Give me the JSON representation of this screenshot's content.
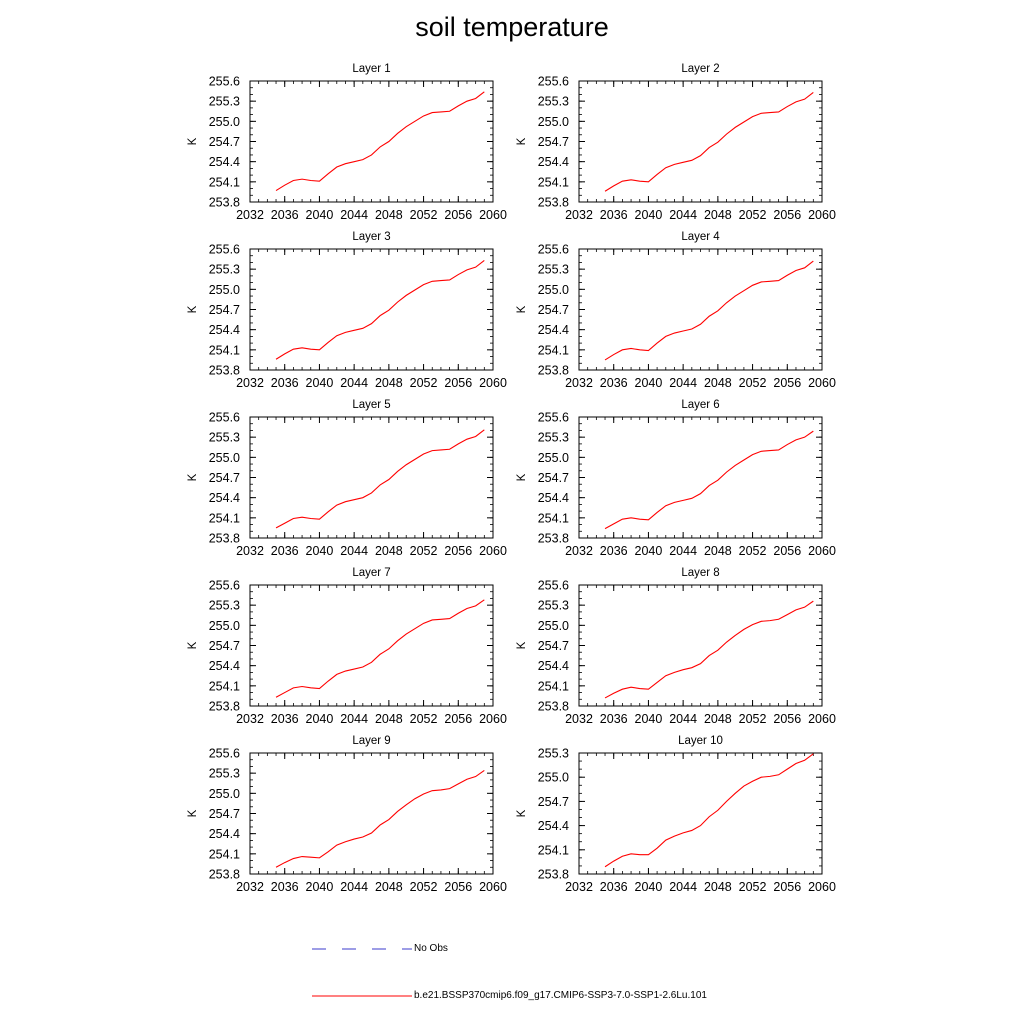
{
  "figure": {
    "title": "soil temperature"
  },
  "legend": {
    "items": [
      {
        "label": "No Obs",
        "color": "#3b3bcc",
        "style": "dashed"
      },
      {
        "label": "b.e21.BSSP370cmip6.f09_g17.CMIP6-SSP3-7.0-SSP1-2.6Lu.101",
        "color": "#ff0000",
        "style": "solid"
      }
    ]
  },
  "chart_data": [
    {
      "type": "line",
      "title": "Layer 1",
      "ylabel": "K",
      "xlim": [
        2032,
        2060
      ],
      "ylim": [
        253.8,
        255.6
      ],
      "xticks": [
        2032,
        2036,
        2040,
        2044,
        2048,
        2052,
        2056,
        2060
      ],
      "yticks": [
        "253.8",
        "254.1",
        "254.4",
        "254.7",
        "255.0",
        "255.3",
        "255.6"
      ],
      "series": [
        {
          "color": "#ff0000",
          "x": [
            2035,
            2036,
            2037,
            2038,
            2039,
            2040,
            2041,
            2042,
            2043,
            2044,
            2045,
            2046,
            2047,
            2048,
            2049,
            2050,
            2051,
            2052,
            2053,
            2054,
            2055,
            2056,
            2057,
            2058,
            2059
          ],
          "y": [
            253.97,
            254.05,
            254.12,
            254.14,
            254.12,
            254.11,
            254.22,
            254.32,
            254.37,
            254.4,
            254.43,
            254.5,
            254.62,
            254.7,
            254.82,
            254.92,
            255.0,
            255.08,
            255.13,
            255.14,
            255.15,
            255.23,
            255.3,
            255.34,
            255.44
          ]
        }
      ]
    },
    {
      "type": "line",
      "title": "Layer 2",
      "ylabel": "K",
      "xlim": [
        2032,
        2060
      ],
      "ylim": [
        253.8,
        255.6
      ],
      "xticks": [
        2032,
        2036,
        2040,
        2044,
        2048,
        2052,
        2056,
        2060
      ],
      "yticks": [
        "253.8",
        "254.1",
        "254.4",
        "254.7",
        "255.0",
        "255.3",
        "255.6"
      ],
      "series": [
        {
          "color": "#ff0000",
          "x": [
            2035,
            2036,
            2037,
            2038,
            2039,
            2040,
            2041,
            2042,
            2043,
            2044,
            2045,
            2046,
            2047,
            2048,
            2049,
            2050,
            2051,
            2052,
            2053,
            2054,
            2055,
            2056,
            2057,
            2058,
            2059
          ],
          "y": [
            253.96,
            254.04,
            254.11,
            254.13,
            254.11,
            254.1,
            254.21,
            254.31,
            254.36,
            254.39,
            254.42,
            254.49,
            254.61,
            254.69,
            254.81,
            254.91,
            254.99,
            255.07,
            255.12,
            255.13,
            255.14,
            255.22,
            255.29,
            255.33,
            255.43
          ]
        }
      ]
    },
    {
      "type": "line",
      "title": "Layer 3",
      "ylabel": "K",
      "xlim": [
        2032,
        2060
      ],
      "ylim": [
        253.8,
        255.6
      ],
      "xticks": [
        2032,
        2036,
        2040,
        2044,
        2048,
        2052,
        2056,
        2060
      ],
      "yticks": [
        "253.8",
        "254.1",
        "254.4",
        "254.7",
        "255.0",
        "255.3",
        "255.6"
      ],
      "series": [
        {
          "color": "#ff0000",
          "x": [
            2035,
            2036,
            2037,
            2038,
            2039,
            2040,
            2041,
            2042,
            2043,
            2044,
            2045,
            2046,
            2047,
            2048,
            2049,
            2050,
            2051,
            2052,
            2053,
            2054,
            2055,
            2056,
            2057,
            2058,
            2059
          ],
          "y": [
            253.96,
            254.04,
            254.11,
            254.13,
            254.11,
            254.1,
            254.21,
            254.31,
            254.36,
            254.39,
            254.42,
            254.49,
            254.61,
            254.69,
            254.81,
            254.91,
            254.99,
            255.07,
            255.12,
            255.13,
            255.14,
            255.22,
            255.29,
            255.33,
            255.43
          ]
        }
      ]
    },
    {
      "type": "line",
      "title": "Layer 4",
      "ylabel": "K",
      "xlim": [
        2032,
        2060
      ],
      "ylim": [
        253.8,
        255.6
      ],
      "xticks": [
        2032,
        2036,
        2040,
        2044,
        2048,
        2052,
        2056,
        2060
      ],
      "yticks": [
        "253.8",
        "254.1",
        "254.4",
        "254.7",
        "255.0",
        "255.3",
        "255.6"
      ],
      "series": [
        {
          "color": "#ff0000",
          "x": [
            2035,
            2036,
            2037,
            2038,
            2039,
            2040,
            2041,
            2042,
            2043,
            2044,
            2045,
            2046,
            2047,
            2048,
            2049,
            2050,
            2051,
            2052,
            2053,
            2054,
            2055,
            2056,
            2057,
            2058,
            2059
          ],
          "y": [
            253.95,
            254.03,
            254.1,
            254.12,
            254.1,
            254.09,
            254.2,
            254.3,
            254.35,
            254.38,
            254.41,
            254.48,
            254.6,
            254.68,
            254.8,
            254.9,
            254.98,
            255.06,
            255.11,
            255.12,
            255.13,
            255.21,
            255.28,
            255.32,
            255.42
          ]
        }
      ]
    },
    {
      "type": "line",
      "title": "Layer 5",
      "ylabel": "K",
      "xlim": [
        2032,
        2060
      ],
      "ylim": [
        253.8,
        255.6
      ],
      "xticks": [
        2032,
        2036,
        2040,
        2044,
        2048,
        2052,
        2056,
        2060
      ],
      "yticks": [
        "253.8",
        "254.1",
        "254.4",
        "254.7",
        "255.0",
        "255.3",
        "255.6"
      ],
      "series": [
        {
          "color": "#ff0000",
          "x": [
            2035,
            2036,
            2037,
            2038,
            2039,
            2040,
            2041,
            2042,
            2043,
            2044,
            2045,
            2046,
            2047,
            2048,
            2049,
            2050,
            2051,
            2052,
            2053,
            2054,
            2055,
            2056,
            2057,
            2058,
            2059
          ],
          "y": [
            253.95,
            254.02,
            254.09,
            254.11,
            254.09,
            254.08,
            254.19,
            254.29,
            254.34,
            254.37,
            254.4,
            254.47,
            254.59,
            254.67,
            254.79,
            254.89,
            254.97,
            255.05,
            255.1,
            255.11,
            255.12,
            255.2,
            255.27,
            255.31,
            255.41
          ]
        }
      ]
    },
    {
      "type": "line",
      "title": "Layer 6",
      "ylabel": "K",
      "xlim": [
        2032,
        2060
      ],
      "ylim": [
        253.8,
        255.6
      ],
      "xticks": [
        2032,
        2036,
        2040,
        2044,
        2048,
        2052,
        2056,
        2060
      ],
      "yticks": [
        "253.8",
        "254.1",
        "254.4",
        "254.7",
        "255.0",
        "255.3",
        "255.6"
      ],
      "series": [
        {
          "color": "#ff0000",
          "x": [
            2035,
            2036,
            2037,
            2038,
            2039,
            2040,
            2041,
            2042,
            2043,
            2044,
            2045,
            2046,
            2047,
            2048,
            2049,
            2050,
            2051,
            2052,
            2053,
            2054,
            2055,
            2056,
            2057,
            2058,
            2059
          ],
          "y": [
            253.94,
            254.01,
            254.08,
            254.1,
            254.08,
            254.07,
            254.18,
            254.28,
            254.33,
            254.36,
            254.39,
            254.46,
            254.58,
            254.66,
            254.78,
            254.88,
            254.96,
            255.04,
            255.09,
            255.1,
            255.11,
            255.19,
            255.26,
            255.3,
            255.39
          ]
        }
      ]
    },
    {
      "type": "line",
      "title": "Layer 7",
      "ylabel": "K",
      "xlim": [
        2032,
        2060
      ],
      "ylim": [
        253.8,
        255.6
      ],
      "xticks": [
        2032,
        2036,
        2040,
        2044,
        2048,
        2052,
        2056,
        2060
      ],
      "yticks": [
        "253.8",
        "254.1",
        "254.4",
        "254.7",
        "255.0",
        "255.3",
        "255.6"
      ],
      "series": [
        {
          "color": "#ff0000",
          "x": [
            2035,
            2036,
            2037,
            2038,
            2039,
            2040,
            2041,
            2042,
            2043,
            2044,
            2045,
            2046,
            2047,
            2048,
            2049,
            2050,
            2051,
            2052,
            2053,
            2054,
            2055,
            2056,
            2057,
            2058,
            2059
          ],
          "y": [
            253.93,
            254.0,
            254.07,
            254.09,
            254.07,
            254.06,
            254.17,
            254.27,
            254.32,
            254.35,
            254.38,
            254.45,
            254.57,
            254.65,
            254.77,
            254.87,
            254.95,
            255.03,
            255.08,
            255.09,
            255.1,
            255.18,
            255.25,
            255.29,
            255.38
          ]
        }
      ]
    },
    {
      "type": "line",
      "title": "Layer 8",
      "ylabel": "K",
      "xlim": [
        2032,
        2060
      ],
      "ylim": [
        253.8,
        255.6
      ],
      "xticks": [
        2032,
        2036,
        2040,
        2044,
        2048,
        2052,
        2056,
        2060
      ],
      "yticks": [
        "253.8",
        "254.1",
        "254.4",
        "254.7",
        "255.0",
        "255.3",
        "255.6"
      ],
      "series": [
        {
          "color": "#ff0000",
          "x": [
            2035,
            2036,
            2037,
            2038,
            2039,
            2040,
            2041,
            2042,
            2043,
            2044,
            2045,
            2046,
            2047,
            2048,
            2049,
            2050,
            2051,
            2052,
            2053,
            2054,
            2055,
            2056,
            2057,
            2058,
            2059
          ],
          "y": [
            253.92,
            253.99,
            254.05,
            254.08,
            254.06,
            254.05,
            254.15,
            254.25,
            254.3,
            254.34,
            254.37,
            254.43,
            254.55,
            254.63,
            254.75,
            254.85,
            254.94,
            255.01,
            255.06,
            255.07,
            255.09,
            255.16,
            255.23,
            255.27,
            255.36
          ]
        }
      ]
    },
    {
      "type": "line",
      "title": "Layer 9",
      "ylabel": "K",
      "xlim": [
        2032,
        2060
      ],
      "ylim": [
        253.8,
        255.6
      ],
      "xticks": [
        2032,
        2036,
        2040,
        2044,
        2048,
        2052,
        2056,
        2060
      ],
      "yticks": [
        "253.8",
        "254.1",
        "254.4",
        "254.7",
        "255.0",
        "255.3",
        "255.6"
      ],
      "series": [
        {
          "color": "#ff0000",
          "x": [
            2035,
            2036,
            2037,
            2038,
            2039,
            2040,
            2041,
            2042,
            2043,
            2044,
            2045,
            2046,
            2047,
            2048,
            2049,
            2050,
            2051,
            2052,
            2053,
            2054,
            2055,
            2056,
            2057,
            2058,
            2059
          ],
          "y": [
            253.9,
            253.97,
            254.03,
            254.06,
            254.05,
            254.04,
            254.13,
            254.23,
            254.28,
            254.32,
            254.35,
            254.41,
            254.53,
            254.61,
            254.73,
            254.83,
            254.92,
            254.99,
            255.04,
            255.05,
            255.07,
            255.14,
            255.21,
            255.25,
            255.34
          ]
        }
      ]
    },
    {
      "type": "line",
      "title": "Layer 10",
      "ylabel": "K",
      "xlim": [
        2032,
        2060
      ],
      "ylim": [
        253.8,
        255.3
      ],
      "xticks": [
        2032,
        2036,
        2040,
        2044,
        2048,
        2052,
        2056,
        2060
      ],
      "yticks": [
        "253.8",
        "254.1",
        "254.4",
        "254.7",
        "255.0",
        "255.3"
      ],
      "series": [
        {
          "color": "#ff0000",
          "x": [
            2035,
            2036,
            2037,
            2038,
            2039,
            2040,
            2041,
            2042,
            2043,
            2044,
            2045,
            2046,
            2047,
            2048,
            2049,
            2050,
            2051,
            2052,
            2053,
            2054,
            2055,
            2056,
            2057,
            2058,
            2059
          ],
          "y": [
            253.89,
            253.96,
            254.02,
            254.05,
            254.04,
            254.04,
            254.12,
            254.22,
            254.27,
            254.31,
            254.34,
            254.4,
            254.51,
            254.59,
            254.7,
            254.8,
            254.89,
            254.95,
            255.0,
            255.01,
            255.03,
            255.1,
            255.17,
            255.21,
            255.29
          ]
        }
      ]
    }
  ]
}
